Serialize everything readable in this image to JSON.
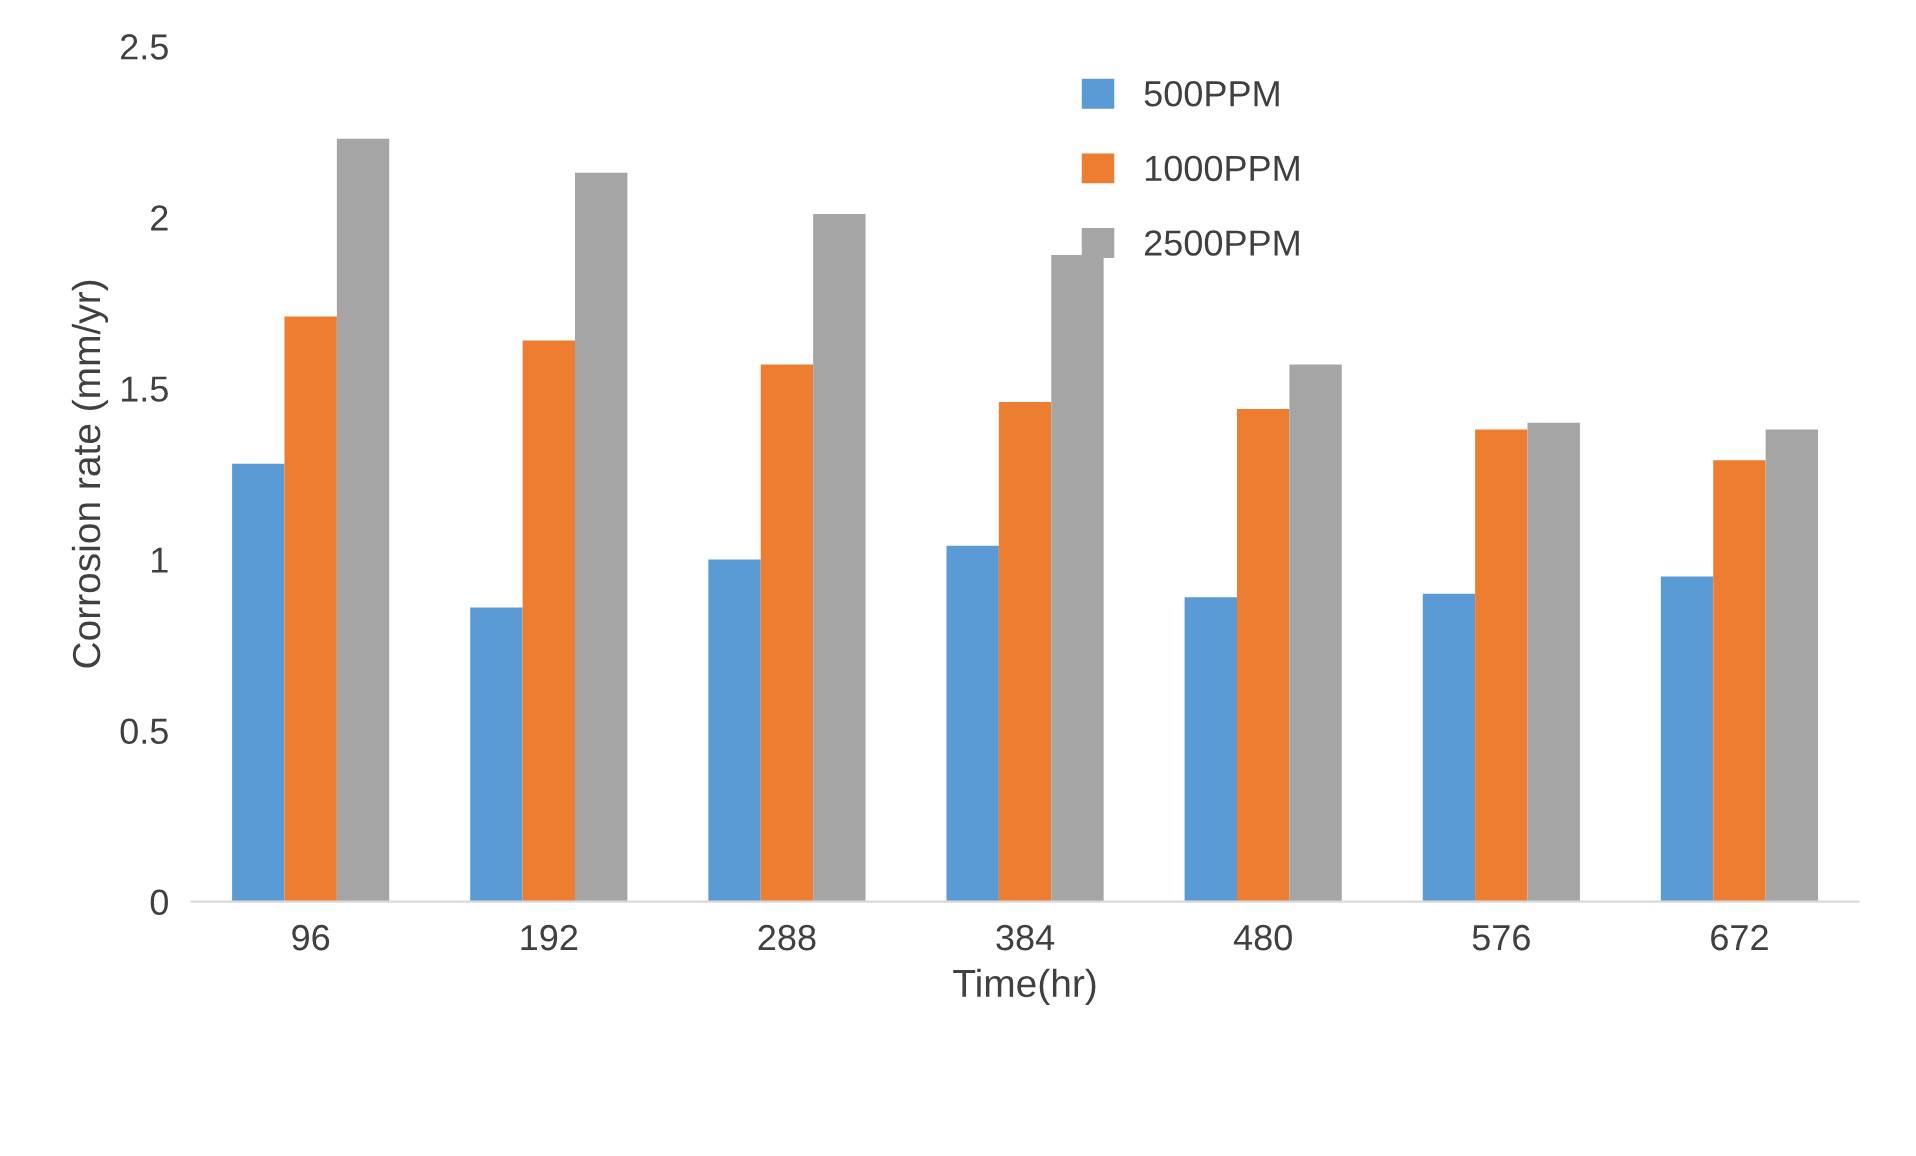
{
  "chart_data": {
    "type": "bar",
    "xlabel": "Time(hr)",
    "ylabel": "Corrosion rate (mm/yr)",
    "categories": [
      "96",
      "192",
      "288",
      "384",
      "480",
      "576",
      "672"
    ],
    "series": [
      {
        "name": "500PPM",
        "color": "#5b9bd5",
        "values": [
          1.28,
          0.86,
          1.0,
          1.04,
          0.89,
          0.9,
          0.95
        ]
      },
      {
        "name": "1000PPM",
        "color": "#ed7d31",
        "values": [
          1.71,
          1.64,
          1.57,
          1.46,
          1.44,
          1.38,
          1.29
        ]
      },
      {
        "name": "2500PPM",
        "color": "#a5a5a5",
        "values": [
          2.23,
          2.13,
          2.01,
          1.89,
          1.57,
          1.4,
          1.38
        ]
      }
    ],
    "ylim": [
      0,
      2.5
    ],
    "yticks": [
      0,
      0.5,
      1,
      1.5,
      2,
      2.5
    ],
    "grid": false,
    "legend": "top"
  }
}
